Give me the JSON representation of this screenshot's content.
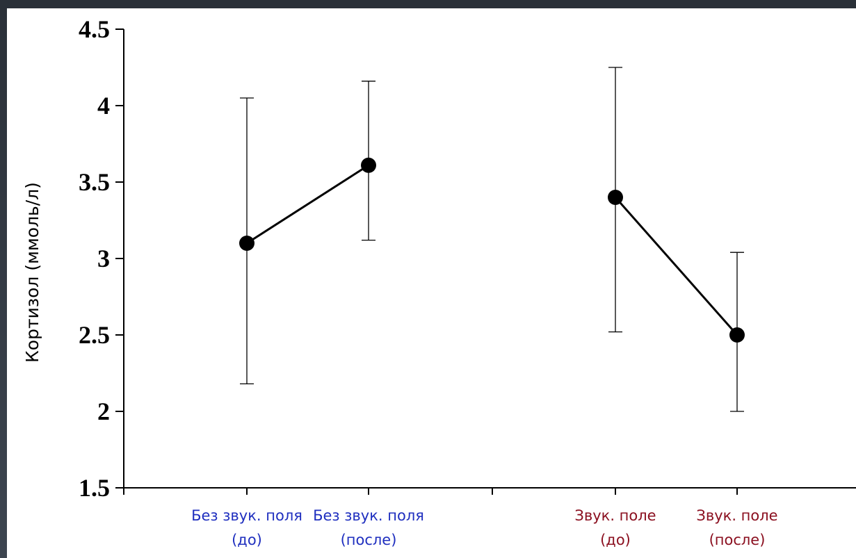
{
  "chart_data": {
    "type": "line",
    "ylabel": "Кортизол (ммоль/л)",
    "ylim": [
      1.5,
      4.5
    ],
    "yticks": [
      "1.5",
      "2",
      "2.5",
      "3",
      "3.5",
      "4",
      "4.5"
    ],
    "grid": false,
    "categories": [
      {
        "line1": "Без звук. поля",
        "line2": "(до)",
        "color": "#1f2fbf"
      },
      {
        "line1": "Без звук. поля",
        "line2": "(после)",
        "color": "#1f2fbf"
      },
      {
        "line1": "Звук. поле",
        "line2": "(до)",
        "color": "#8b1020"
      },
      {
        "line1": "Звук. поле",
        "line2": "(после)",
        "color": "#8b1020"
      }
    ],
    "series": [
      {
        "points": [
          {
            "value": 3.1,
            "err_low": 2.18,
            "err_high": 4.05
          },
          {
            "value": 3.61,
            "err_low": 3.12,
            "err_high": 4.16
          }
        ]
      },
      {
        "points": [
          {
            "value": 3.4,
            "err_low": 2.52,
            "err_high": 4.25
          },
          {
            "value": 2.5,
            "err_low": 2.0,
            "err_high": 3.04
          }
        ]
      }
    ]
  }
}
